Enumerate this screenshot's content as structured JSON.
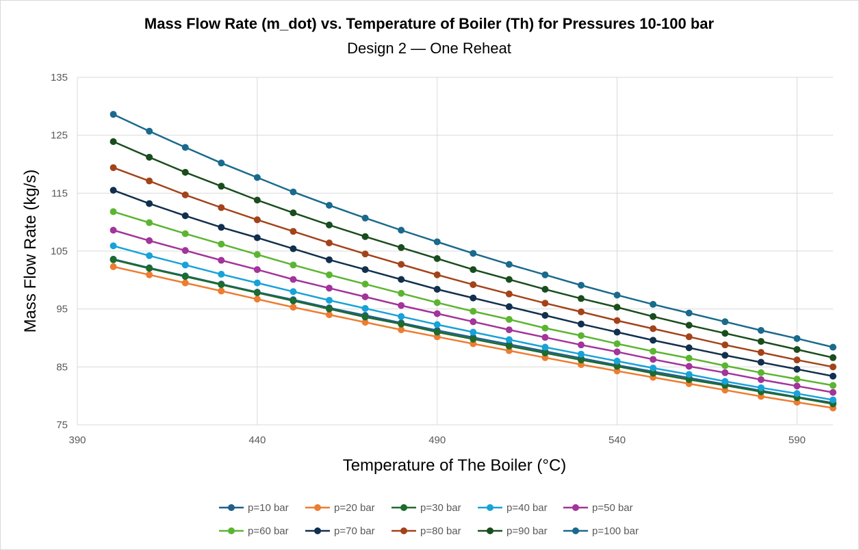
{
  "chart_data": {
    "type": "line",
    "title": "Mass Flow Rate (m_dot) vs. Temperature of Boiler (Th) for Pressures 10-100 bar",
    "subtitle": "Design 2 — One Reheat",
    "xlabel": "Temperature of The Boiler (°C)",
    "ylabel": "Mass Flow Rate (kg/s)",
    "xlim": [
      390,
      600
    ],
    "ylim": [
      75,
      135
    ],
    "x_ticks": [
      390,
      440,
      490,
      540,
      590
    ],
    "y_ticks": [
      75,
      85,
      95,
      105,
      115,
      125,
      135
    ],
    "grid": "vertical-and-horizontal",
    "legend_position": "bottom",
    "x": [
      400,
      410,
      420,
      430,
      440,
      450,
      460,
      470,
      480,
      490,
      500,
      510,
      520,
      530,
      540,
      550,
      560,
      570,
      580,
      590,
      600
    ],
    "series": [
      {
        "name": "p=10 bar",
        "color": "#1f5f8b",
        "values": [
          103.6,
          102.1,
          100.7,
          99.3,
          97.9,
          96.6,
          95.2,
          93.9,
          92.6,
          91.3,
          90.1,
          88.9,
          87.7,
          86.5,
          85.3,
          84.2,
          83.1,
          82.0,
          80.9,
          79.8,
          78.8
        ]
      },
      {
        "name": "p=20 bar",
        "color": "#ed7d31",
        "values": [
          102.3,
          100.9,
          99.5,
          98.1,
          96.7,
          95.3,
          94.0,
          92.7,
          91.4,
          90.2,
          89.0,
          87.8,
          86.6,
          85.4,
          84.3,
          83.2,
          82.1,
          81.0,
          79.9,
          78.9,
          77.9
        ]
      },
      {
        "name": "p=30 bar",
        "color": "#1e6b2e",
        "values": [
          103.5,
          102.0,
          100.6,
          99.2,
          97.8,
          96.4,
          95.0,
          93.6,
          92.4,
          91.0,
          89.8,
          88.6,
          87.4,
          86.2,
          85.1,
          83.9,
          82.8,
          81.8,
          80.7,
          79.7,
          78.6
        ]
      },
      {
        "name": "p=40 bar",
        "color": "#17a2d8",
        "values": [
          105.9,
          104.2,
          102.6,
          101.0,
          99.5,
          98.0,
          96.5,
          95.1,
          93.7,
          92.3,
          91.0,
          89.7,
          88.4,
          87.2,
          86.0,
          84.8,
          83.7,
          82.5,
          81.4,
          80.4,
          79.3
        ]
      },
      {
        "name": "p=50 bar",
        "color": "#a2349a",
        "values": [
          108.6,
          106.8,
          105.1,
          103.4,
          101.8,
          100.1,
          98.6,
          97.1,
          95.6,
          94.2,
          92.8,
          91.4,
          90.1,
          88.8,
          87.6,
          86.3,
          85.1,
          84.0,
          82.8,
          81.7,
          80.6
        ]
      },
      {
        "name": "p=60 bar",
        "color": "#5cb531",
        "values": [
          111.8,
          109.9,
          108.0,
          106.2,
          104.4,
          102.6,
          100.9,
          99.3,
          97.7,
          96.1,
          94.6,
          93.2,
          91.7,
          90.4,
          89.0,
          87.7,
          86.5,
          85.2,
          84.0,
          82.9,
          81.8
        ]
      },
      {
        "name": "p=70 bar",
        "color": "#12304d",
        "values": [
          115.5,
          113.2,
          111.1,
          109.1,
          107.3,
          105.4,
          103.5,
          101.8,
          100.1,
          98.4,
          96.9,
          95.4,
          93.9,
          92.4,
          91.0,
          89.6,
          88.3,
          87.0,
          85.8,
          84.6,
          83.4
        ]
      },
      {
        "name": "p=80 bar",
        "color": "#a3431a",
        "values": [
          119.4,
          117.1,
          114.7,
          112.5,
          110.4,
          108.4,
          106.4,
          104.5,
          102.7,
          100.9,
          99.2,
          97.6,
          96.0,
          94.5,
          93.0,
          91.6,
          90.2,
          88.8,
          87.5,
          86.2,
          85.0
        ]
      },
      {
        "name": "p=90 bar",
        "color": "#1a4d1e",
        "values": [
          123.9,
          121.2,
          118.6,
          116.2,
          113.8,
          111.6,
          109.5,
          107.5,
          105.6,
          103.7,
          101.8,
          100.1,
          98.4,
          96.8,
          95.3,
          93.7,
          92.2,
          90.8,
          89.4,
          88.0,
          86.6
        ]
      },
      {
        "name": "p=100 bar",
        "color": "#1a6a8c",
        "values": [
          128.6,
          125.7,
          122.9,
          120.2,
          117.7,
          115.2,
          112.9,
          110.7,
          108.6,
          106.6,
          104.6,
          102.7,
          100.9,
          99.1,
          97.4,
          95.8,
          94.3,
          92.8,
          91.3,
          89.9,
          88.4
        ]
      }
    ]
  }
}
